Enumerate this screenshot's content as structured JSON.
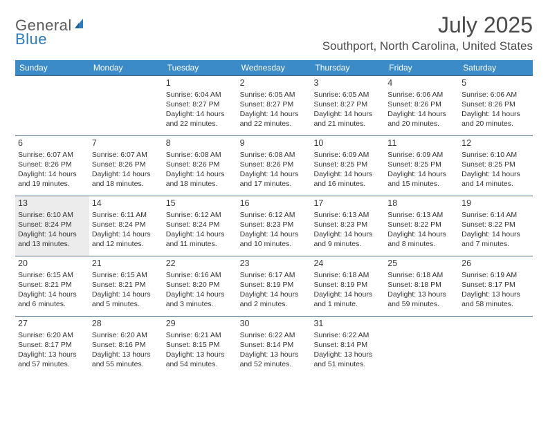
{
  "logo": {
    "part1": "General",
    "part2": "Blue"
  },
  "title": "July 2025",
  "location": "Southport, North Carolina, United States",
  "colors": {
    "header_bg": "#3b8bc9",
    "header_text": "#ffffff",
    "rule": "#4a6b8a",
    "shaded": "#ececec",
    "logo_gray": "#5a5a5a",
    "logo_blue": "#2a7bbf"
  },
  "days_of_week": [
    "Sunday",
    "Monday",
    "Tuesday",
    "Wednesday",
    "Thursday",
    "Friday",
    "Saturday"
  ],
  "weeks": [
    [
      {
        "n": "",
        "sr": "",
        "ss": "",
        "dl": "",
        "sh": false
      },
      {
        "n": "",
        "sr": "",
        "ss": "",
        "dl": "",
        "sh": false
      },
      {
        "n": "1",
        "sr": "Sunrise: 6:04 AM",
        "ss": "Sunset: 8:27 PM",
        "dl": "Daylight: 14 hours and 22 minutes.",
        "sh": false
      },
      {
        "n": "2",
        "sr": "Sunrise: 6:05 AM",
        "ss": "Sunset: 8:27 PM",
        "dl": "Daylight: 14 hours and 22 minutes.",
        "sh": false
      },
      {
        "n": "3",
        "sr": "Sunrise: 6:05 AM",
        "ss": "Sunset: 8:27 PM",
        "dl": "Daylight: 14 hours and 21 minutes.",
        "sh": false
      },
      {
        "n": "4",
        "sr": "Sunrise: 6:06 AM",
        "ss": "Sunset: 8:26 PM",
        "dl": "Daylight: 14 hours and 20 minutes.",
        "sh": false
      },
      {
        "n": "5",
        "sr": "Sunrise: 6:06 AM",
        "ss": "Sunset: 8:26 PM",
        "dl": "Daylight: 14 hours and 20 minutes.",
        "sh": false
      }
    ],
    [
      {
        "n": "6",
        "sr": "Sunrise: 6:07 AM",
        "ss": "Sunset: 8:26 PM",
        "dl": "Daylight: 14 hours and 19 minutes.",
        "sh": false
      },
      {
        "n": "7",
        "sr": "Sunrise: 6:07 AM",
        "ss": "Sunset: 8:26 PM",
        "dl": "Daylight: 14 hours and 18 minutes.",
        "sh": false
      },
      {
        "n": "8",
        "sr": "Sunrise: 6:08 AM",
        "ss": "Sunset: 8:26 PM",
        "dl": "Daylight: 14 hours and 18 minutes.",
        "sh": false
      },
      {
        "n": "9",
        "sr": "Sunrise: 6:08 AM",
        "ss": "Sunset: 8:26 PM",
        "dl": "Daylight: 14 hours and 17 minutes.",
        "sh": false
      },
      {
        "n": "10",
        "sr": "Sunrise: 6:09 AM",
        "ss": "Sunset: 8:25 PM",
        "dl": "Daylight: 14 hours and 16 minutes.",
        "sh": false
      },
      {
        "n": "11",
        "sr": "Sunrise: 6:09 AM",
        "ss": "Sunset: 8:25 PM",
        "dl": "Daylight: 14 hours and 15 minutes.",
        "sh": false
      },
      {
        "n": "12",
        "sr": "Sunrise: 6:10 AM",
        "ss": "Sunset: 8:25 PM",
        "dl": "Daylight: 14 hours and 14 minutes.",
        "sh": false
      }
    ],
    [
      {
        "n": "13",
        "sr": "Sunrise: 6:10 AM",
        "ss": "Sunset: 8:24 PM",
        "dl": "Daylight: 14 hours and 13 minutes.",
        "sh": true
      },
      {
        "n": "14",
        "sr": "Sunrise: 6:11 AM",
        "ss": "Sunset: 8:24 PM",
        "dl": "Daylight: 14 hours and 12 minutes.",
        "sh": false
      },
      {
        "n": "15",
        "sr": "Sunrise: 6:12 AM",
        "ss": "Sunset: 8:24 PM",
        "dl": "Daylight: 14 hours and 11 minutes.",
        "sh": false
      },
      {
        "n": "16",
        "sr": "Sunrise: 6:12 AM",
        "ss": "Sunset: 8:23 PM",
        "dl": "Daylight: 14 hours and 10 minutes.",
        "sh": false
      },
      {
        "n": "17",
        "sr": "Sunrise: 6:13 AM",
        "ss": "Sunset: 8:23 PM",
        "dl": "Daylight: 14 hours and 9 minutes.",
        "sh": false
      },
      {
        "n": "18",
        "sr": "Sunrise: 6:13 AM",
        "ss": "Sunset: 8:22 PM",
        "dl": "Daylight: 14 hours and 8 minutes.",
        "sh": false
      },
      {
        "n": "19",
        "sr": "Sunrise: 6:14 AM",
        "ss": "Sunset: 8:22 PM",
        "dl": "Daylight: 14 hours and 7 minutes.",
        "sh": false
      }
    ],
    [
      {
        "n": "20",
        "sr": "Sunrise: 6:15 AM",
        "ss": "Sunset: 8:21 PM",
        "dl": "Daylight: 14 hours and 6 minutes.",
        "sh": false
      },
      {
        "n": "21",
        "sr": "Sunrise: 6:15 AM",
        "ss": "Sunset: 8:21 PM",
        "dl": "Daylight: 14 hours and 5 minutes.",
        "sh": false
      },
      {
        "n": "22",
        "sr": "Sunrise: 6:16 AM",
        "ss": "Sunset: 8:20 PM",
        "dl": "Daylight: 14 hours and 3 minutes.",
        "sh": false
      },
      {
        "n": "23",
        "sr": "Sunrise: 6:17 AM",
        "ss": "Sunset: 8:19 PM",
        "dl": "Daylight: 14 hours and 2 minutes.",
        "sh": false
      },
      {
        "n": "24",
        "sr": "Sunrise: 6:18 AM",
        "ss": "Sunset: 8:19 PM",
        "dl": "Daylight: 14 hours and 1 minute.",
        "sh": false
      },
      {
        "n": "25",
        "sr": "Sunrise: 6:18 AM",
        "ss": "Sunset: 8:18 PM",
        "dl": "Daylight: 13 hours and 59 minutes.",
        "sh": false
      },
      {
        "n": "26",
        "sr": "Sunrise: 6:19 AM",
        "ss": "Sunset: 8:17 PM",
        "dl": "Daylight: 13 hours and 58 minutes.",
        "sh": false
      }
    ],
    [
      {
        "n": "27",
        "sr": "Sunrise: 6:20 AM",
        "ss": "Sunset: 8:17 PM",
        "dl": "Daylight: 13 hours and 57 minutes.",
        "sh": false
      },
      {
        "n": "28",
        "sr": "Sunrise: 6:20 AM",
        "ss": "Sunset: 8:16 PM",
        "dl": "Daylight: 13 hours and 55 minutes.",
        "sh": false
      },
      {
        "n": "29",
        "sr": "Sunrise: 6:21 AM",
        "ss": "Sunset: 8:15 PM",
        "dl": "Daylight: 13 hours and 54 minutes.",
        "sh": false
      },
      {
        "n": "30",
        "sr": "Sunrise: 6:22 AM",
        "ss": "Sunset: 8:14 PM",
        "dl": "Daylight: 13 hours and 52 minutes.",
        "sh": false
      },
      {
        "n": "31",
        "sr": "Sunrise: 6:22 AM",
        "ss": "Sunset: 8:14 PM",
        "dl": "Daylight: 13 hours and 51 minutes.",
        "sh": false
      },
      {
        "n": "",
        "sr": "",
        "ss": "",
        "dl": "",
        "sh": false
      },
      {
        "n": "",
        "sr": "",
        "ss": "",
        "dl": "",
        "sh": false
      }
    ]
  ]
}
